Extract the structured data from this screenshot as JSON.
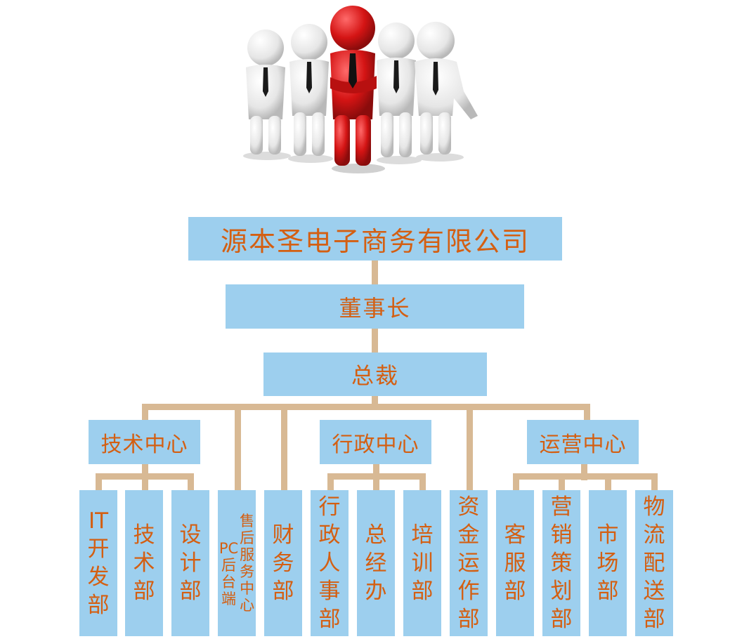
{
  "company": "源本圣电子商务有限公司",
  "chairman": "董事长",
  "president": "总裁",
  "centers": {
    "tech": "技术中心",
    "admin": "行政中心",
    "ops": "运营中心"
  },
  "departments": {
    "it": "IT\n开\n发\n部",
    "tech": "技\n术\n部",
    "design": "设\n计\n部",
    "pc_backend": "PC\n后\n台\n端",
    "after_sales": "售\n后\n服\n务\n中\n心",
    "finance": "财\n务\n部",
    "hr": "行\n政\n人\n事\n部",
    "general_office": "总\n经\n办",
    "training": "培\n训\n部",
    "capital": "资\n金\n运\n作\n部",
    "customer_service": "客\n服\n部",
    "marketing": "营\n销\n策\n划\n部",
    "market": "市\n场\n部",
    "logistics": "物\n流\n配\n送\n部"
  },
  "colors": {
    "box_fill": "#9dcfee",
    "text": "#d45f12",
    "connector": "#d8b994",
    "leader_figure": "#d81a1a",
    "team_figure": "#f0f0f0"
  }
}
